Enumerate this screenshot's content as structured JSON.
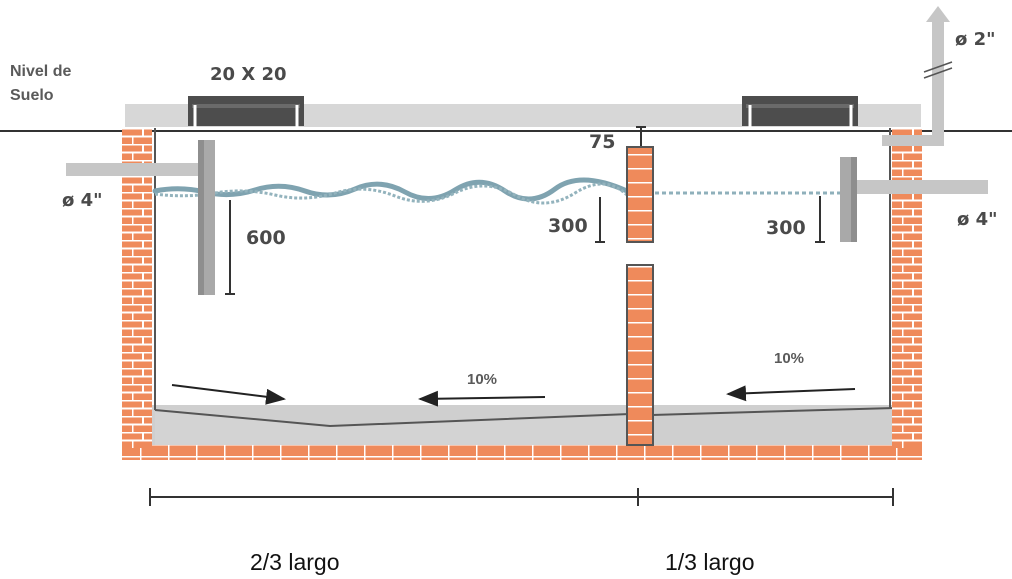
{
  "labels": {
    "ground_level_line1": "Nivel de",
    "ground_level_line2": "Suelo",
    "manhole_size": "20 X 20",
    "vent_diameter": "ø 2\"",
    "inlet_diameter": "ø 4\"",
    "outlet_diameter": "ø 4\"",
    "freeboard": "75",
    "inlet_tee_depth": "600",
    "wall_opening_depth": "300",
    "outlet_tee_depth": "300",
    "slope_left": "10%",
    "slope_right": "10%",
    "length_two_thirds": "2/3 largo",
    "length_one_third": "1/3 largo"
  },
  "colors": {
    "brick": "#ef8a5b",
    "mortar": "#ffffff",
    "slab": "#d7d7d7",
    "lid": "#4d4d4d",
    "pipe": "#c6c6c6",
    "water": "#7fa3b0",
    "floor": "#cfcfcf",
    "text": "#4a4a4a"
  }
}
